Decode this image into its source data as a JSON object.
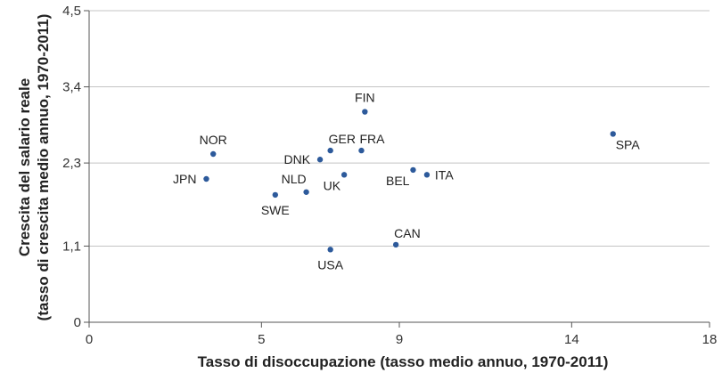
{
  "chart_data": {
    "type": "scatter",
    "title": "",
    "xlabel": "Tasso di disoccupazione (tasso medio annuo, 1970-2011)",
    "ylabel_line1": "Crescita del salario reale",
    "ylabel_line2": "(tasso di crescita medio annuo, 1970-2011)",
    "xlim": [
      0,
      18
    ],
    "ylim": [
      0,
      4.5
    ],
    "x_ticks": [
      0,
      5,
      9,
      14,
      18
    ],
    "y_ticks": [
      0,
      1.1,
      2.3,
      3.4,
      4.5
    ],
    "x_tick_labels": [
      "0",
      "5",
      "9",
      "14",
      "18"
    ],
    "y_tick_labels": [
      "0",
      "1,1",
      "2,3",
      "3,4",
      "4,5"
    ],
    "grid": "horizontal",
    "point_color": "#2d5a9b",
    "points": [
      {
        "label": "NOR",
        "x": 3.6,
        "y": 2.43,
        "pos": "above"
      },
      {
        "label": "JPN",
        "x": 3.4,
        "y": 2.07,
        "pos": "left"
      },
      {
        "label": "SWE",
        "x": 5.4,
        "y": 1.84,
        "pos": "below"
      },
      {
        "label": "NLD",
        "x": 6.3,
        "y": 1.88,
        "pos": "above-left"
      },
      {
        "label": "DNK",
        "x": 6.7,
        "y": 2.35,
        "pos": "left"
      },
      {
        "label": "GER",
        "x": 7.0,
        "y": 2.48,
        "pos": "above-right"
      },
      {
        "label": "UK",
        "x": 7.4,
        "y": 2.13,
        "pos": "below-left"
      },
      {
        "label": "FRA",
        "x": 7.9,
        "y": 2.48,
        "pos": "above-right"
      },
      {
        "label": "FIN",
        "x": 8.0,
        "y": 3.04,
        "pos": "above"
      },
      {
        "label": "USA",
        "x": 7.0,
        "y": 1.05,
        "pos": "below"
      },
      {
        "label": "CAN",
        "x": 8.9,
        "y": 1.12,
        "pos": "above-right"
      },
      {
        "label": "BEL",
        "x": 9.4,
        "y": 2.2,
        "pos": "below-left"
      },
      {
        "label": "ITA",
        "x": 9.8,
        "y": 2.13,
        "pos": "right"
      },
      {
        "label": "SPA",
        "x": 15.2,
        "y": 2.72,
        "pos": "below-right"
      }
    ]
  }
}
